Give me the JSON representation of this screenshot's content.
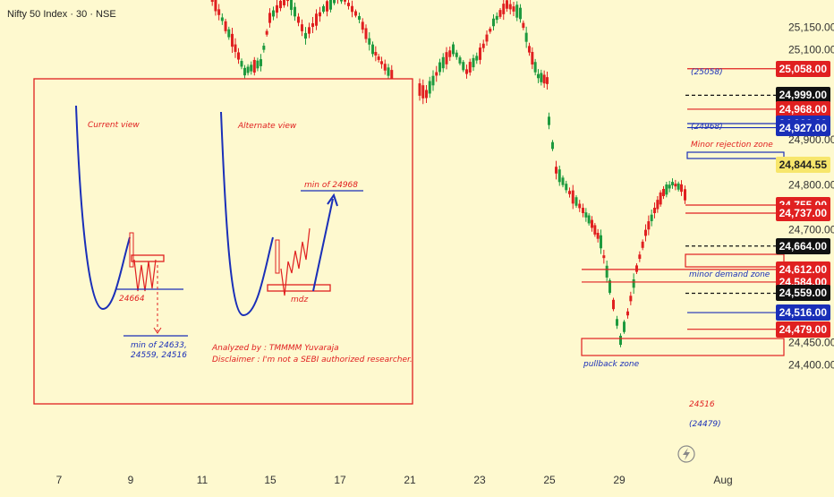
{
  "header": {
    "title": "Nifty 50 Index · 30 · NSE"
  },
  "colors": {
    "up": "#1e9a3e",
    "down": "#e02020",
    "red_line": "#e02020",
    "blue_line": "#1a2fb8",
    "black_line": "#111111",
    "bg": "#fef9cf",
    "note_blue": "#1a2fb8"
  },
  "chart_data": {
    "type": "candlestick",
    "y_axis_ticks": [
      "25,150.00",
      "25,100.00",
      "24,900.00",
      "24,800.00",
      "24,700.00",
      "24,450.00",
      "24,400.00"
    ],
    "x_axis_ticks": [
      "7",
      "9",
      "11",
      "15",
      "17",
      "21",
      "23",
      "25",
      "29",
      "Aug"
    ],
    "ylim": [
      24380,
      25185
    ],
    "current_price": "24,844.55",
    "price_tags": [
      {
        "label": "25,058.00",
        "value": 25058,
        "bg": "#e02020",
        "line": "solid",
        "line_color": "#e02020"
      },
      {
        "label": "24,999.00",
        "value": 24999,
        "bg": "#111111",
        "line": "dashed",
        "line_color": "#111111"
      },
      {
        "label": "24,968.00",
        "value": 24968,
        "bg": "#e02020",
        "line": "solid",
        "line_color": "#e02020"
      },
      {
        "label": "24,936.00",
        "value": 24936,
        "bg": "#1a2fb8",
        "line": "solid",
        "line_color": "#1a2fb8"
      },
      {
        "label": "24,927.00",
        "value": 24927,
        "bg": "#1a2fb8",
        "line": "solid",
        "line_color": "#1a2fb8"
      },
      {
        "label": "24,755.00",
        "value": 24755,
        "bg": "#e02020",
        "line": "solid",
        "line_color": "#e02020"
      },
      {
        "label": "24,737.00",
        "value": 24737,
        "bg": "#e02020",
        "line": "solid",
        "line_color": "#e02020"
      },
      {
        "label": "24,664.00",
        "value": 24664,
        "bg": "#111111",
        "line": "dashed",
        "line_color": "#111111"
      },
      {
        "label": "24,612.00",
        "value": 24612,
        "bg": "#e02020",
        "line": "solid",
        "line_color": "#e02020"
      },
      {
        "label": "24,584.00",
        "value": 24584,
        "bg": "#e02020",
        "line": "solid",
        "line_color": "#e02020"
      },
      {
        "label": "24,559.00",
        "value": 24559,
        "bg": "#111111",
        "line": "dashed",
        "line_color": "#111111"
      },
      {
        "label": "24,516.00",
        "value": 24516,
        "bg": "#1a2fb8",
        "line": "solid",
        "line_color": "#1a2fb8"
      },
      {
        "label": "24,479.00",
        "value": 24479,
        "bg": "#e02020",
        "line": "solid",
        "line_color": "#e02020"
      }
    ],
    "annotations": {
      "a25058": "(25058)",
      "a24968": "(24968)",
      "minor_rejection": "Minor rejection zone",
      "minor_demand": "minor demand zone",
      "pullback": "pullback zone",
      "a24516": "24516",
      "a24479": "(24479)"
    },
    "inset": {
      "current_view": "Current view",
      "alternate_view": "Alternate view",
      "level_24664": "24664",
      "min_text_1": "min of 24633,",
      "min_text_2": "24559, 24516",
      "min_of_24968": "min of 24968",
      "mdz": "mdz",
      "analyzed_by": "Analyzed by : TMMMM Yuvaraja",
      "disclaimer": "Disclaimer : I'm not a SEBI authorized researcher."
    }
  }
}
